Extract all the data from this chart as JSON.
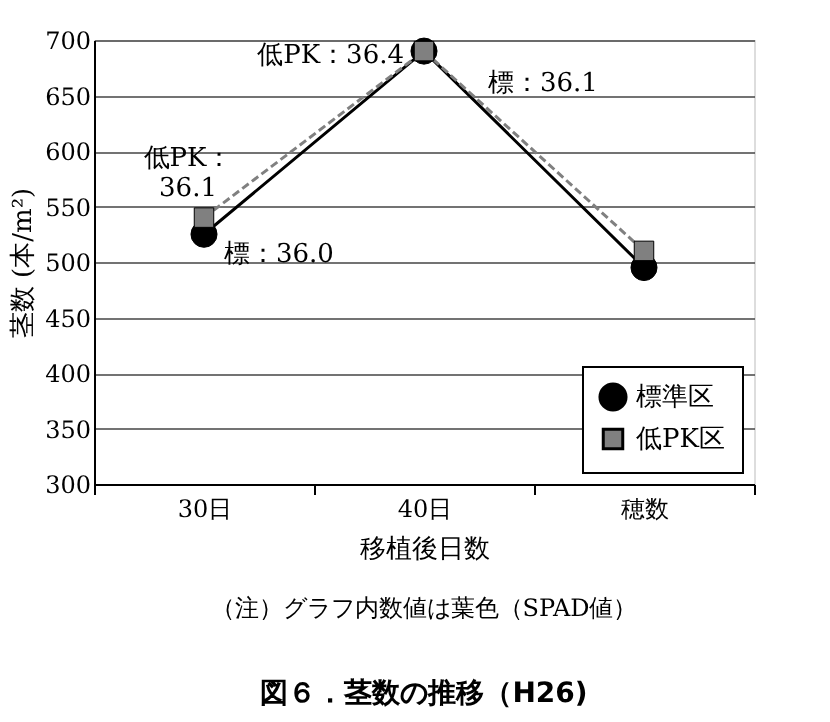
{
  "chart_data": {
    "type": "line",
    "title": "図６．茎数の推移（H26)",
    "xlabel": "移植後日数",
    "ylabel": "茎数 (本/m²)",
    "categories": [
      "30日",
      "40日",
      "穂数"
    ],
    "series": [
      {
        "name": "標準区",
        "color": "#000000",
        "values": [
          525,
          690,
          495
        ],
        "marker": "circle",
        "line_style": "solid"
      },
      {
        "name": "低PK区",
        "color": "#808080",
        "values": [
          540,
          690,
          510
        ],
        "marker": "square",
        "line_style": "dashed"
      }
    ],
    "ylim": [
      300,
      700
    ],
    "yticks": [
      300,
      350,
      400,
      450,
      500,
      550,
      600,
      650,
      700
    ],
    "grid": "y",
    "legend": "bottom right",
    "annotations": [
      {
        "text": "低PK：\n36.1",
        "x": "30日",
        "y": 540
      },
      {
        "text": "標：36.0",
        "x": "30日",
        "y": 525
      },
      {
        "text": "低PK：36.4",
        "x": "40日",
        "y": 690
      },
      {
        "text": "標：36.1",
        "x": "40日",
        "y": 690
      },
      "（注）グラフ内数値は葉色（SPAD値）"
    ]
  }
}
